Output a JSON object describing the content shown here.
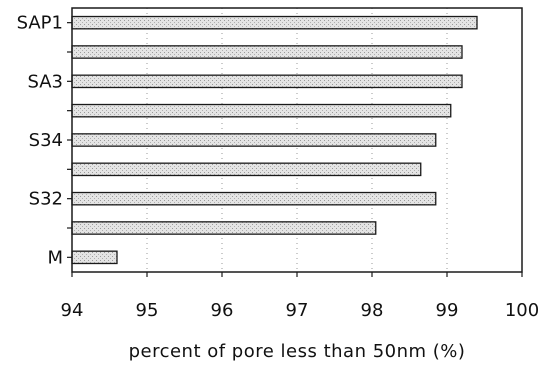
{
  "chart_data": {
    "type": "bar",
    "orientation": "horizontal",
    "categories": [
      "SAP1",
      "",
      "SA3",
      "",
      "S34",
      "",
      "S32",
      "",
      "M"
    ],
    "values": [
      99.4,
      99.2,
      99.2,
      99.05,
      98.85,
      98.65,
      98.85,
      98.05,
      94.6
    ],
    "xlabel": "percent of pore less than 50nm (%)",
    "ylabel": "",
    "xlim": [
      94,
      100
    ],
    "xticks": [
      94,
      95,
      96,
      97,
      98,
      99,
      100
    ],
    "xtick_labels": [
      "94",
      "95",
      "96",
      "97",
      "98",
      "99",
      "100"
    ],
    "grid": true,
    "legend": "none",
    "bar_fill": "#d8d8d8",
    "bar_edge": "#1a1a1a"
  }
}
